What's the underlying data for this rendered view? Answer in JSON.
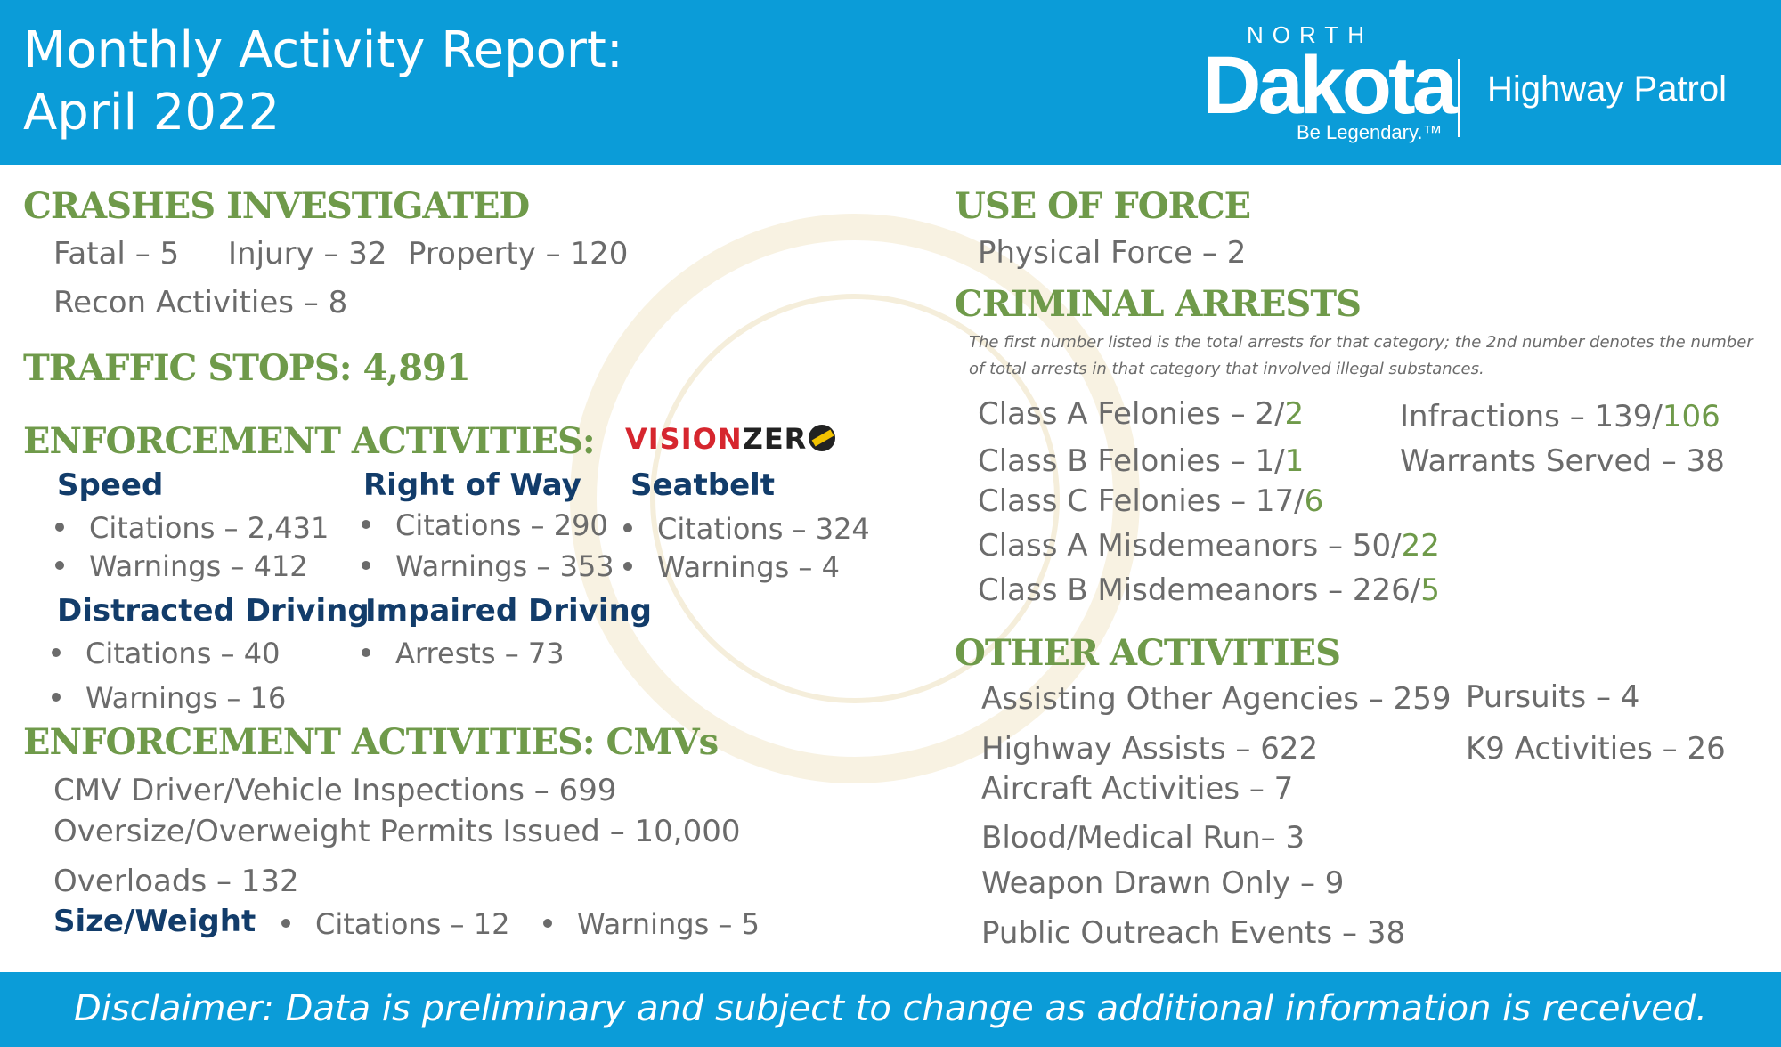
{
  "header": {
    "title_line1": "Monthly Activity Report:",
    "title_line2": "April 2022",
    "logo": {
      "north": "NORTH",
      "dakota": "Dakota",
      "tagline": "Be Legendary.™",
      "agency": "Highway Patrol"
    }
  },
  "colors": {
    "header_blue": "#0b9cd8",
    "heading_green": "#6f9a4a",
    "subheading_navy": "#123c6a",
    "body_gray": "#6b6b6b"
  },
  "crashes": {
    "heading": "CRASHES INVESTIGATED",
    "fatal": "Fatal – 5",
    "injury": "Injury – 32",
    "property": "Property – 120",
    "recon": "Recon Activities – 8"
  },
  "traffic_stops": {
    "heading": "TRAFFIC STOPS: 4,891"
  },
  "enforcement": {
    "heading": "ENFORCEMENT ACTIVITIES:",
    "vision_zero": {
      "vision": "VISION",
      "zero": "ZER",
      "icon": "vision-zero-road-icon"
    },
    "speed": {
      "title": "Speed",
      "citations": "Citations – 2,431",
      "warnings": "Warnings – 412"
    },
    "right_of_way": {
      "title": "Right of Way",
      "citations": "Citations – 290",
      "warnings": "Warnings – 353"
    },
    "seatbelt": {
      "title": "Seatbelt",
      "citations": "Citations – 324",
      "warnings": "Warnings – 4"
    },
    "distracted": {
      "title": "Distracted Driving",
      "citations": "Citations – 40",
      "warnings": "Warnings – 16"
    },
    "impaired": {
      "title": "Impaired Driving",
      "arrests": "Arrests – 73"
    }
  },
  "cmv": {
    "heading": "ENFORCEMENT ACTIVITIES: CMVs",
    "inspections": "CMV Driver/Vehicle Inspections – 699",
    "permits": "Oversize/Overweight Permits Issued – 10,000",
    "overloads": "Overloads – 132",
    "size_weight": {
      "title": "Size/Weight",
      "citations": "Citations – 12",
      "warnings": "Warnings – 5"
    }
  },
  "use_of_force": {
    "heading": "USE OF FORCE",
    "physical": "Physical Force – 2"
  },
  "criminal_arrests": {
    "heading": "CRIMINAL ARRESTS",
    "note": "The first number listed is the total arrests for that category; the 2nd number denotes the number of total arrests in that category that involved illegal substances.",
    "class_a_felonies": {
      "label": "Class A Felonies – 2/",
      "sub": "2"
    },
    "class_b_felonies": {
      "label": "Class B Felonies – 1/",
      "sub": "1"
    },
    "class_c_felonies": {
      "label": "Class C Felonies – 17/",
      "sub": "6"
    },
    "class_a_misd": {
      "label": "Class A Misdemeanors – 50/",
      "sub": "22"
    },
    "class_b_misd": {
      "label": "Class B Misdemeanors – 226/",
      "sub": "5"
    },
    "infractions": {
      "label": "Infractions – 139/",
      "sub": "106"
    },
    "warrants": "Warrants Served – 38"
  },
  "other": {
    "heading": "OTHER ACTIVITIES",
    "assisting": "Assisting Other Agencies – 259",
    "pursuits": "Pursuits – 4",
    "highway_assists": "Highway Assists – 622",
    "k9": "K9 Activities – 26",
    "aircraft": "Aircraft Activities – 7",
    "blood": "Blood/Medical Run– 3",
    "weapon": "Weapon Drawn Only – 9",
    "outreach": "Public Outreach Events – 38"
  },
  "footer": {
    "disclaimer": "Disclaimer: Data is preliminary and subject to change as additional information is received."
  }
}
